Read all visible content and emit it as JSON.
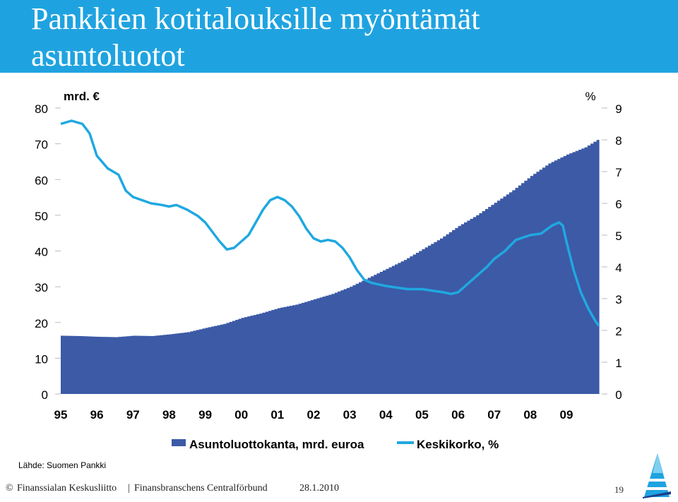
{
  "slide": {
    "title_line1": "Pankkien kotitalouksille myöntämät",
    "title_line2": "asuntoluotot",
    "source": "Lähde: Suomen Pankki",
    "footer_copyright": "©",
    "footer_org": "Finanssialan Keskusliitto",
    "footer_sep": "|",
    "footer_org_sv": "Finansbranschens Centralförbund",
    "footer_date": "28.1.2010",
    "page_number": "19",
    "title_bg_color": "#1fa3e0"
  },
  "chart_data": {
    "type": "bar+line",
    "left_unit": "mrd. €",
    "right_unit": "%",
    "left_ticks": [
      "0",
      "10",
      "20",
      "30",
      "40",
      "50",
      "60",
      "70",
      "80"
    ],
    "right_ticks": [
      "0",
      "1",
      "2",
      "3",
      "4",
      "5",
      "6",
      "7",
      "8",
      "9"
    ],
    "x_ticks": [
      "95",
      "96",
      "97",
      "98",
      "99",
      "00",
      "01",
      "02",
      "03",
      "04",
      "05",
      "06",
      "07",
      "08",
      "09"
    ],
    "left_ylim": [
      0,
      80
    ],
    "right_ylim": [
      0,
      9
    ],
    "x_range": [
      1995,
      2009.9
    ],
    "legend_position": "bottom",
    "grid": false,
    "series": [
      {
        "name": "Asuntoluottokanta, mrd. euroa",
        "kind": "bar",
        "axis": "left",
        "color": "#3c5aa6",
        "points": [
          [
            1995.0,
            16.3
          ],
          [
            1995.5,
            16.2
          ],
          [
            1996.0,
            16.0
          ],
          [
            1996.5,
            15.9
          ],
          [
            1997.0,
            16.3
          ],
          [
            1997.5,
            16.2
          ],
          [
            1998.0,
            16.7
          ],
          [
            1998.5,
            17.3
          ],
          [
            1999.0,
            18.5
          ],
          [
            1999.5,
            19.6
          ],
          [
            2000.0,
            21.3
          ],
          [
            2000.5,
            22.5
          ],
          [
            2001.0,
            24.0
          ],
          [
            2001.5,
            25.0
          ],
          [
            2002.0,
            26.5
          ],
          [
            2002.5,
            28.0
          ],
          [
            2003.0,
            30.0
          ],
          [
            2003.5,
            32.5
          ],
          [
            2004.0,
            35.0
          ],
          [
            2004.5,
            37.5
          ],
          [
            2005.0,
            40.5
          ],
          [
            2005.5,
            43.5
          ],
          [
            2006.0,
            47.0
          ],
          [
            2006.5,
            50.0
          ],
          [
            2007.0,
            53.5
          ],
          [
            2007.5,
            57.0
          ],
          [
            2008.0,
            61.0
          ],
          [
            2008.5,
            64.5
          ],
          [
            2009.0,
            67.0
          ],
          [
            2009.5,
            69.0
          ],
          [
            2009.9,
            71.5
          ]
        ]
      },
      {
        "name": "Keskikorko, %",
        "kind": "line",
        "axis": "right",
        "color": "#20a8e0",
        "points": [
          [
            1995.0,
            8.5
          ],
          [
            1995.3,
            8.6
          ],
          [
            1995.6,
            8.5
          ],
          [
            1995.8,
            8.2
          ],
          [
            1996.0,
            7.5
          ],
          [
            1996.3,
            7.1
          ],
          [
            1996.6,
            6.9
          ],
          [
            1996.8,
            6.4
          ],
          [
            1997.0,
            6.2
          ],
          [
            1997.5,
            6.0
          ],
          [
            1997.8,
            5.95
          ],
          [
            1998.0,
            5.9
          ],
          [
            1998.2,
            5.95
          ],
          [
            1998.5,
            5.8
          ],
          [
            1998.8,
            5.6
          ],
          [
            1999.0,
            5.4
          ],
          [
            1999.2,
            5.1
          ],
          [
            1999.4,
            4.8
          ],
          [
            1999.6,
            4.55
          ],
          [
            1999.8,
            4.6
          ],
          [
            2000.0,
            4.8
          ],
          [
            2000.2,
            5.0
          ],
          [
            2000.4,
            5.4
          ],
          [
            2000.6,
            5.8
          ],
          [
            2000.8,
            6.1
          ],
          [
            2001.0,
            6.2
          ],
          [
            2001.2,
            6.1
          ],
          [
            2001.4,
            5.9
          ],
          [
            2001.6,
            5.6
          ],
          [
            2001.8,
            5.2
          ],
          [
            2002.0,
            4.9
          ],
          [
            2002.2,
            4.8
          ],
          [
            2002.4,
            4.85
          ],
          [
            2002.6,
            4.8
          ],
          [
            2002.8,
            4.6
          ],
          [
            2003.0,
            4.3
          ],
          [
            2003.2,
            3.9
          ],
          [
            2003.4,
            3.6
          ],
          [
            2003.6,
            3.5
          ],
          [
            2003.8,
            3.45
          ],
          [
            2004.0,
            3.4
          ],
          [
            2004.3,
            3.35
          ],
          [
            2004.6,
            3.3
          ],
          [
            2005.0,
            3.3
          ],
          [
            2005.3,
            3.25
          ],
          [
            2005.6,
            3.2
          ],
          [
            2005.8,
            3.15
          ],
          [
            2006.0,
            3.2
          ],
          [
            2006.2,
            3.4
          ],
          [
            2006.5,
            3.7
          ],
          [
            2006.8,
            4.0
          ],
          [
            2007.0,
            4.25
          ],
          [
            2007.3,
            4.5
          ],
          [
            2007.6,
            4.85
          ],
          [
            2008.0,
            5.0
          ],
          [
            2008.3,
            5.05
          ],
          [
            2008.6,
            5.3
          ],
          [
            2008.8,
            5.4
          ],
          [
            2008.9,
            5.3
          ],
          [
            2009.0,
            4.8
          ],
          [
            2009.2,
            3.9
          ],
          [
            2009.4,
            3.2
          ],
          [
            2009.6,
            2.7
          ],
          [
            2009.8,
            2.3
          ],
          [
            2009.9,
            2.15
          ]
        ]
      }
    ]
  }
}
